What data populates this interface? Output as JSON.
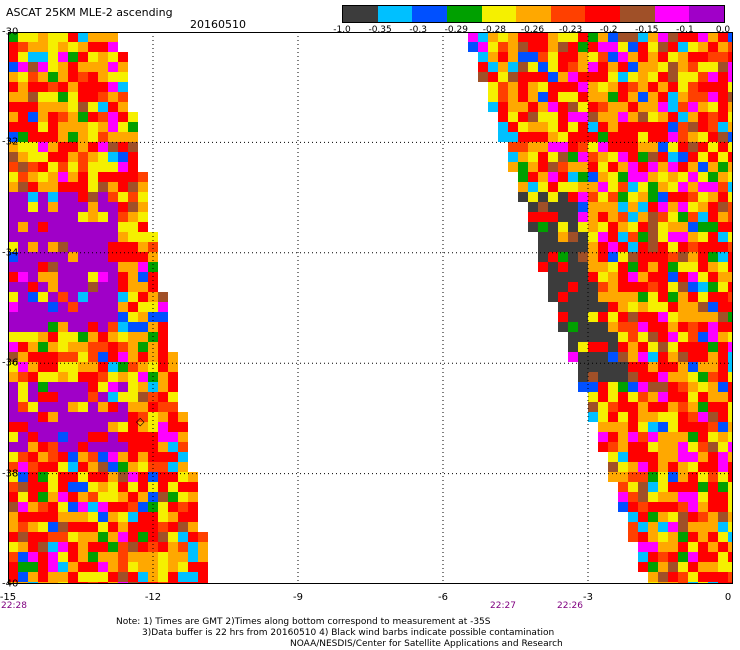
{
  "header": {
    "title": "ASCAT 25KM MLE-2 ascending",
    "date": "20160510"
  },
  "colorbar": {
    "colors": [
      "#3c3c3c",
      "#00c0ff",
      "#0050ff",
      "#00a000",
      "#f5f000",
      "#ffa800",
      "#ff4000",
      "#ff0000",
      "#a05028",
      "#ff00ff",
      "#a000c8"
    ],
    "labels": [
      "-1.0",
      "-0.35",
      "-0.3",
      "-0.29",
      "-0.28",
      "-0.26",
      "-0.23",
      "-0.2",
      "-0.15",
      "-0.1",
      "0.0"
    ]
  },
  "map": {
    "lon_ticks": [
      "-15",
      "-12",
      "-9",
      "-6",
      "-3",
      "0"
    ],
    "lat_ticks": [
      "-30",
      "-32",
      "-34",
      "-36",
      "-38",
      "-40"
    ],
    "times": [
      "22:28",
      "22:27",
      "22:26"
    ],
    "marker_symbol": "◇",
    "lon_range": [
      -15,
      0
    ],
    "lat_range": [
      -40,
      -30
    ]
  },
  "footer": {
    "note1": "Note: 1) Times are GMT 2)Times along bottom correspond to measurement at -35S",
    "note2": "3)Data buffer is 22 hrs from 20160510 4) Black wind barbs indicate possible contamination",
    "credit": "NOAA/NESDIS/Center for Satellite Applications and Research"
  }
}
